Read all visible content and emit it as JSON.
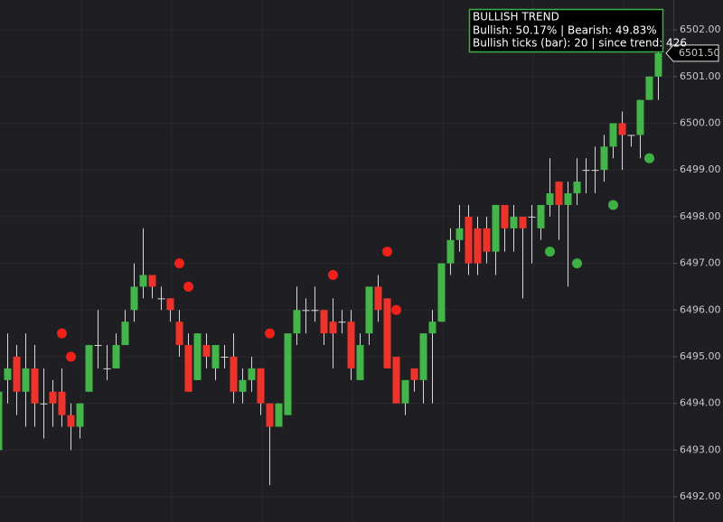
{
  "chart_data": {
    "type": "candlestick",
    "open": [
      6493.0,
      6494.5,
      6495.0,
      6494.25,
      6494.75,
      6494.0,
      6494.25,
      6494.25,
      6493.75,
      6493.5,
      6494.25,
      6495.25,
      6494.75,
      6494.75,
      6495.25,
      6496.0,
      6496.5,
      6496.75,
      6496.25,
      6496.25,
      6495.75,
      6495.25,
      6494.5,
      6495.25,
      6494.75,
      6495.0,
      6495.0,
      6494.25,
      6494.5,
      6494.75,
      6494.0,
      6493.5,
      6493.75,
      6495.5,
      6496.0,
      6496.0,
      6496.0,
      6495.75,
      6495.75,
      6495.75,
      6494.5,
      6495.5,
      6496.5,
      6496.25,
      6495.0,
      6494.0,
      6494.75,
      6494.5,
      6495.5,
      6495.75,
      6497.0,
      6497.5,
      6498.0,
      6497.75,
      6497.75,
      6497.25,
      6498.25,
      6497.75,
      6498.0,
      6498.0,
      6497.75,
      6498.25,
      6498.75,
      6498.25,
      6498.5,
      6499.0,
      6499.0,
      6499.0,
      6499.5,
      6500.0,
      6499.75,
      6499.75,
      6500.5,
      6501.0
    ],
    "high": [
      6494.5,
      6495.5,
      6495.25,
      6495.5,
      6495.25,
      6494.75,
      6494.5,
      6494.75,
      6494.0,
      6494.0,
      6495.25,
      6496.0,
      6495.25,
      6495.5,
      6496.0,
      6497.0,
      6497.75,
      6496.75,
      6496.5,
      6496.25,
      6496.0,
      6495.5,
      6495.5,
      6495.5,
      6495.25,
      6495.25,
      6495.5,
      6494.75,
      6495.0,
      6494.75,
      6494.0,
      6494.0,
      6495.5,
      6496.5,
      6496.25,
      6496.5,
      6496.0,
      6496.25,
      6496.0,
      6496.0,
      6495.5,
      6496.5,
      6496.75,
      6496.25,
      6495.0,
      6494.5,
      6494.75,
      6495.5,
      6496.0,
      6497.0,
      6497.75,
      6498.25,
      6498.25,
      6498.0,
      6498.0,
      6498.25,
      6498.25,
      6498.25,
      6498.0,
      6498.25,
      6498.25,
      6499.25,
      6498.75,
      6498.75,
      6499.25,
      6499.25,
      6499.5,
      6499.75,
      6500.0,
      6500.25,
      6499.75,
      6500.5,
      6501.0,
      6502.0
    ],
    "low": [
      6493.0,
      6494.0,
      6493.75,
      6493.5,
      6493.5,
      6493.25,
      6493.5,
      6493.5,
      6493.0,
      6493.25,
      6494.25,
      6494.75,
      6494.5,
      6494.75,
      6495.25,
      6495.75,
      6496.25,
      6496.25,
      6496.0,
      6495.75,
      6495.0,
      6494.25,
      6494.5,
      6494.75,
      6494.5,
      6494.75,
      6494.0,
      6494.0,
      6494.25,
      6493.75,
      6492.25,
      6493.5,
      6493.75,
      6495.25,
      6495.5,
      6495.75,
      6495.25,
      6494.75,
      6495.5,
      6494.5,
      6494.5,
      6495.25,
      6495.75,
      6494.75,
      6494.0,
      6493.75,
      6494.25,
      6494.0,
      6494.0,
      6495.75,
      6496.75,
      6497.25,
      6496.75,
      6496.75,
      6497.0,
      6496.75,
      6497.25,
      6497.25,
      6496.25,
      6497.0,
      6497.5,
      6498.0,
      6497.5,
      6496.5,
      6498.25,
      6498.5,
      6498.5,
      6498.75,
      6499.25,
      6499.0,
      6499.5,
      6499.25,
      6500.5,
      6500.5
    ],
    "close": [
      6494.25,
      6494.75,
      6494.25,
      6494.75,
      6494.0,
      6494.0,
      6494.0,
      6493.75,
      6493.5,
      6494.0,
      6495.25,
      6495.25,
      6494.75,
      6495.25,
      6495.75,
      6496.5,
      6496.75,
      6496.5,
      6496.25,
      6496.0,
      6495.25,
      6494.25,
      6495.5,
      6495.0,
      6495.25,
      6495.0,
      6494.25,
      6494.5,
      6494.75,
      6494.0,
      6493.5,
      6494.0,
      6495.5,
      6496.0,
      6496.0,
      6496.0,
      6495.5,
      6495.5,
      6495.75,
      6494.75,
      6495.25,
      6496.5,
      6496.0,
      6494.75,
      6494.0,
      6494.5,
      6494.5,
      6495.5,
      6495.75,
      6497.0,
      6497.5,
      6497.75,
      6497.0,
      6497.0,
      6497.25,
      6498.25,
      6497.75,
      6498.0,
      6497.75,
      6498.0,
      6498.25,
      6498.5,
      6498.25,
      6498.5,
      6498.75,
      6499.0,
      6499.0,
      6499.5,
      6500.0,
      6499.75,
      6499.75,
      6500.5,
      6501.0,
      6501.5
    ],
    "up_color": "#43b649",
    "down_color": "#f0332a",
    "wick_color": "#d8d8d8",
    "sell_signals": [
      null,
      null,
      null,
      null,
      null,
      null,
      null,
      6495.5,
      6495.0,
      null,
      null,
      null,
      null,
      null,
      null,
      null,
      null,
      null,
      null,
      null,
      6497.0,
      6496.5,
      null,
      null,
      null,
      null,
      null,
      null,
      null,
      null,
      6495.5,
      null,
      null,
      null,
      null,
      null,
      null,
      6496.75,
      null,
      null,
      null,
      null,
      null,
      6497.25,
      6496.0,
      null,
      null,
      null,
      null,
      null,
      null,
      null,
      null,
      null,
      null,
      null,
      null,
      null,
      null,
      null,
      null,
      null,
      null,
      null,
      null,
      null,
      null,
      null,
      null,
      null,
      null,
      null,
      null,
      null
    ],
    "sell_color": "#f0201a",
    "buy_signals": [
      null,
      null,
      null,
      null,
      null,
      null,
      null,
      null,
      null,
      null,
      null,
      null,
      null,
      null,
      null,
      null,
      null,
      null,
      null,
      null,
      null,
      null,
      null,
      null,
      null,
      null,
      null,
      null,
      null,
      null,
      null,
      null,
      null,
      null,
      null,
      null,
      null,
      null,
      null,
      null,
      null,
      null,
      null,
      null,
      null,
      null,
      null,
      null,
      null,
      null,
      null,
      null,
      null,
      null,
      null,
      null,
      null,
      null,
      null,
      null,
      null,
      6497.25,
      null,
      null,
      6497.0,
      null,
      null,
      null,
      6498.25,
      null,
      null,
      null,
      6499.25,
      null
    ],
    "buy_color": "#3cb043",
    "ylim": [
      6491.46,
      6502.64
    ],
    "yticks": [
      {
        "value": 6492,
        "label": "6492.00"
      },
      {
        "value": 6493,
        "label": "6493.00"
      },
      {
        "value": 6494,
        "label": "6494.00"
      },
      {
        "value": 6495,
        "label": "6495.00"
      },
      {
        "value": 6496,
        "label": "6496.00"
      },
      {
        "value": 6497,
        "label": "6497.00"
      },
      {
        "value": 6498,
        "label": "6498.00"
      },
      {
        "value": 6499,
        "label": "6499.00"
      },
      {
        "value": 6500,
        "label": "6500.00"
      },
      {
        "value": 6501,
        "label": "6501.00"
      },
      {
        "value": 6502,
        "label": "6502.00"
      }
    ],
    "last_price": {
      "value": 6501.5,
      "label": "6501.50"
    },
    "grid": true,
    "annotations": [
      "BULLISH TREND",
      "Bullish: 50.17% | Bearish: 49.83%",
      "Bullish ticks (bar): 20 | since trend: 426"
    ],
    "annotation_color": "#3cb043"
  }
}
